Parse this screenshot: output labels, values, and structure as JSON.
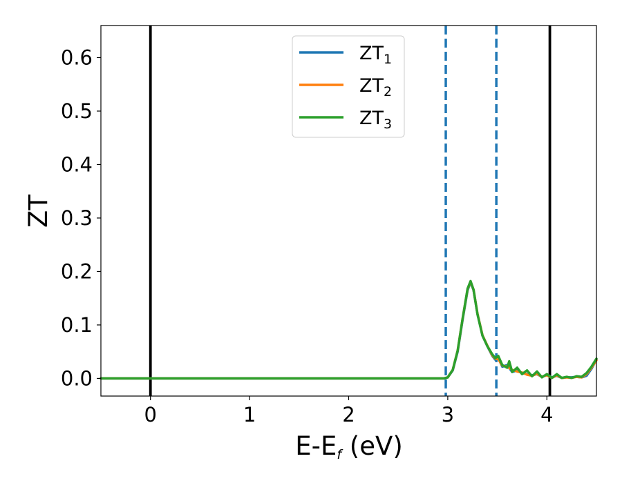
{
  "chart_data": {
    "type": "line",
    "xlabel": "E-E",
    "xlabel_sub": "f",
    "xlabel_unit": " (eV)",
    "ylabel": "ZT",
    "xlim": [
      -0.5,
      4.5
    ],
    "ylim": [
      -0.033,
      0.66
    ],
    "xticks": [
      0,
      1,
      2,
      3,
      4
    ],
    "xtick_labels": [
      "0",
      "1",
      "2",
      "3",
      "4"
    ],
    "yticks": [
      0.0,
      0.1,
      0.2,
      0.3,
      0.4,
      0.5,
      0.6
    ],
    "ytick_labels": [
      "0.0",
      "0.1",
      "0.2",
      "0.3",
      "0.4",
      "0.5",
      "0.6"
    ],
    "grid": false,
    "legend_position": "top-center",
    "vertical_lines": [
      {
        "x": 0.0,
        "style": "solid",
        "color": "#000000"
      },
      {
        "x": 4.03,
        "style": "solid",
        "color": "#000000"
      },
      {
        "x": 2.98,
        "style": "dashed",
        "color": "#1f77b4"
      },
      {
        "x": 3.49,
        "style": "dashed",
        "color": "#1f77b4"
      }
    ],
    "series": [
      {
        "name": "ZT",
        "name_sub": "1",
        "color": "#1f77b4",
        "x": [
          -0.5,
          2.96,
          3.0,
          3.05,
          3.1,
          3.15,
          3.2,
          3.23,
          3.26,
          3.3,
          3.35,
          3.4,
          3.45,
          3.48,
          3.51,
          3.55,
          3.6,
          3.65,
          3.7,
          3.75,
          3.8,
          3.85,
          3.9,
          3.95,
          4.0,
          4.05,
          4.1,
          4.15,
          4.2,
          4.25,
          4.3,
          4.35,
          4.4,
          4.45,
          4.5
        ],
        "y": [
          0.0,
          0.0,
          0.002,
          0.015,
          0.05,
          0.11,
          0.165,
          0.18,
          0.165,
          0.12,
          0.08,
          0.06,
          0.042,
          0.035,
          0.038,
          0.022,
          0.025,
          0.012,
          0.015,
          0.01,
          0.008,
          0.006,
          0.008,
          0.003,
          0.007,
          0.002,
          0.005,
          0.001,
          0.002,
          0.002,
          0.003,
          0.002,
          0.005,
          0.018,
          0.035
        ]
      },
      {
        "name": "ZT",
        "name_sub": "2",
        "color": "#ff7f0e",
        "x": [
          -0.5,
          2.96,
          3.0,
          3.05,
          3.1,
          3.15,
          3.2,
          3.23,
          3.26,
          3.3,
          3.35,
          3.4,
          3.45,
          3.48,
          3.51,
          3.55,
          3.6,
          3.65,
          3.7,
          3.75,
          3.8,
          3.85,
          3.9,
          3.95,
          4.0,
          4.05,
          4.1,
          4.15,
          4.2,
          4.25,
          4.3,
          4.35,
          4.4,
          4.45,
          4.5
        ],
        "y": [
          0.0,
          0.0,
          0.002,
          0.016,
          0.052,
          0.112,
          0.167,
          0.181,
          0.166,
          0.121,
          0.081,
          0.061,
          0.043,
          0.037,
          0.036,
          0.024,
          0.022,
          0.016,
          0.013,
          0.011,
          0.007,
          0.005,
          0.009,
          0.003,
          0.006,
          0.001,
          0.006,
          0.001,
          0.002,
          0.001,
          0.003,
          0.002,
          0.008,
          0.02,
          0.034
        ]
      },
      {
        "name": "ZT",
        "name_sub": "3",
        "color": "#2ca02c",
        "x": [
          -0.5,
          2.96,
          3.0,
          3.05,
          3.1,
          3.15,
          3.2,
          3.23,
          3.26,
          3.3,
          3.35,
          3.4,
          3.45,
          3.48,
          3.51,
          3.55,
          3.6,
          3.62,
          3.65,
          3.7,
          3.75,
          3.8,
          3.85,
          3.9,
          3.95,
          4.0,
          4.05,
          4.1,
          4.15,
          4.2,
          4.25,
          4.3,
          4.35,
          4.4,
          4.45,
          4.5
        ],
        "y": [
          0.0,
          0.0,
          0.002,
          0.016,
          0.052,
          0.112,
          0.168,
          0.182,
          0.166,
          0.12,
          0.08,
          0.06,
          0.045,
          0.038,
          0.042,
          0.025,
          0.02,
          0.032,
          0.012,
          0.02,
          0.008,
          0.015,
          0.004,
          0.013,
          0.002,
          0.008,
          0.001,
          0.008,
          0.001,
          0.003,
          0.001,
          0.004,
          0.003,
          0.01,
          0.022,
          0.037
        ]
      }
    ]
  }
}
